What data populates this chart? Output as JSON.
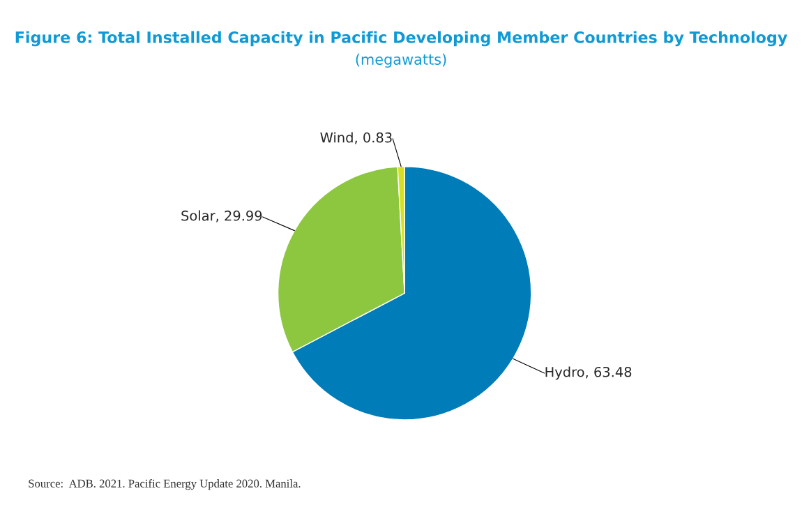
{
  "chart_data": {
    "type": "pie",
    "title": "Figure 6: Total Installed Capacity in Pacific Developing Member Countries by Technology",
    "subtitle": "(megawatts)",
    "categories": [
      "Hydro",
      "Solar",
      "Wind"
    ],
    "values": [
      63.48,
      29.99,
      0.83
    ],
    "colors": [
      "#007cb8",
      "#8dc63f",
      "#d7df23"
    ],
    "value_labels": [
      ", 63.48",
      ", 29.99",
      ", 0.83"
    ],
    "annotations": [
      "Source:  ADB. 2021. Pacific Energy Update 2020. Manila."
    ]
  }
}
